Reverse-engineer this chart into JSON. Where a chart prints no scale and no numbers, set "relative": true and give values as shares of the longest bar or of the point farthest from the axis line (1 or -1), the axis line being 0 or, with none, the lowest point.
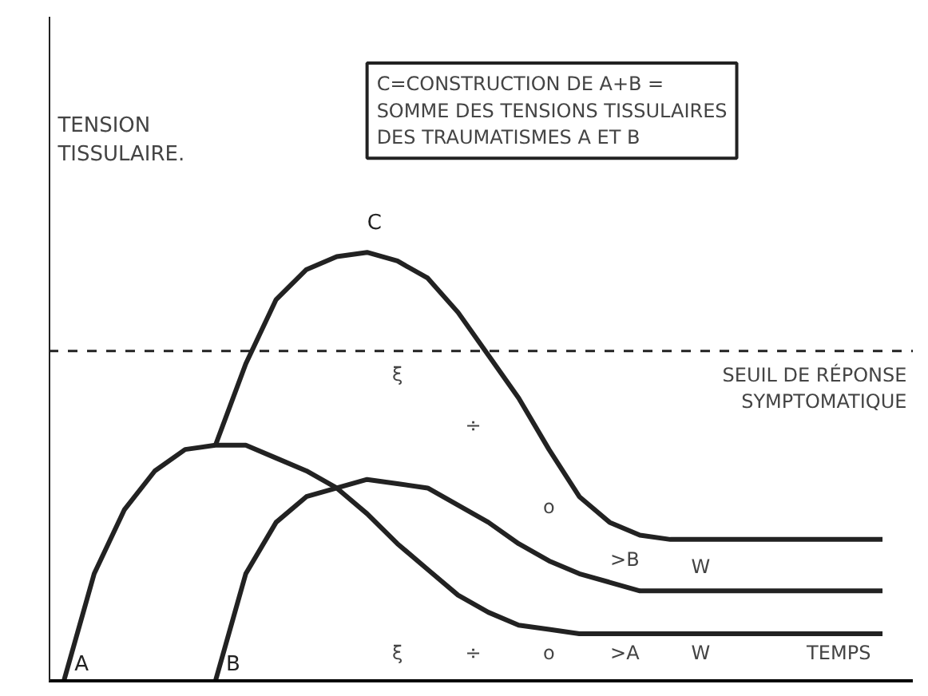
{
  "chart_data": {
    "type": "line",
    "relative": true,
    "title": "C=CONSTRUCTION DE A+B = SOMME DES TENSIONS TISSULAIRES DES TRAUMATISMES A ET B",
    "ylabel": "TENSION TISSULAIRE.",
    "xlabel": "TEMPS",
    "categories": [
      null,
      null,
      null,
      null,
      null,
      null,
      null,
      null,
      null,
      null,
      null,
      null,
      null,
      null,
      null,
      null,
      null,
      null,
      null,
      null,
      null,
      null,
      null,
      null,
      null,
      null,
      null,
      null
    ],
    "series": [
      {
        "name": "A",
        "color": "#222222",
        "values": [
          0,
          0.25,
          0.4,
          0.49,
          0.54,
          0.55,
          0.55,
          0.52,
          0.49,
          0.45,
          0.39,
          0.32,
          0.26,
          0.2,
          0.16,
          0.13,
          0.12,
          0.11,
          0.11,
          0.11,
          0.11,
          0.11,
          0.11,
          0.11,
          0.11,
          0.11,
          0.11,
          0.11
        ]
      },
      {
        "name": "B",
        "color": "#222222",
        "values": [
          null,
          null,
          null,
          null,
          null,
          0,
          0.25,
          0.37,
          0.43,
          0.45,
          0.47,
          0.46,
          0.45,
          0.41,
          0.37,
          0.32,
          0.28,
          0.25,
          0.23,
          0.21,
          0.21,
          0.21,
          0.21,
          0.21,
          0.21,
          0.21,
          0.21,
          0.21
        ]
      },
      {
        "name": "C",
        "color": "#222222",
        "values": [
          null,
          null,
          null,
          null,
          null,
          0.55,
          0.74,
          0.89,
          0.96,
          0.99,
          1,
          0.98,
          0.94,
          0.86,
          0.76,
          0.66,
          0.54,
          0.43,
          0.37,
          0.34,
          0.33,
          0.33,
          0.33,
          0.33,
          0.33,
          0.33,
          0.33,
          0.33
        ]
      }
    ],
    "ref_lines": [
      {
        "axis": "y",
        "value": 0.77,
        "label": "SEUIL DE RÉPONSE SYMPTOMATIQUE",
        "color": "#222222",
        "line_style": "dashed"
      }
    ],
    "annotations": [
      "ξ",
      "÷",
      "o",
      ">B",
      "W",
      "ξ",
      "÷",
      "o",
      ">A",
      "W"
    ],
    "line_style": "solid",
    "marker": "none",
    "grid": false
  }
}
